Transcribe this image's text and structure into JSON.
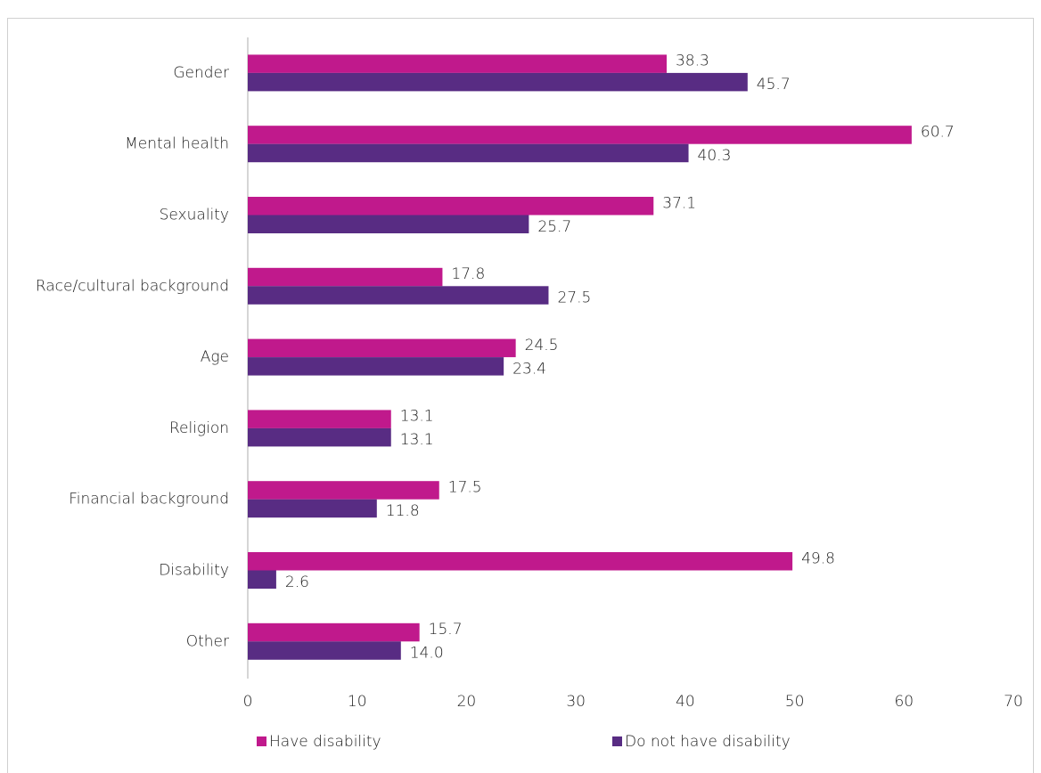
{
  "chart_data": {
    "type": "bar",
    "orientation": "horizontal",
    "categories": [
      "Gender",
      "Mental health",
      "Sexuality",
      "Race/cultural background",
      "Age",
      "Religion",
      "Financial background",
      "Disability",
      "Other"
    ],
    "series": [
      {
        "name": "Have disability",
        "color": "#c0198c",
        "values": [
          38.3,
          60.7,
          37.1,
          17.8,
          24.5,
          13.1,
          17.5,
          49.8,
          15.7
        ],
        "value_labels": [
          "38.3",
          "60.7",
          "37.1",
          "17.8",
          "24.5",
          "13.1",
          "17.5",
          "49.8",
          "15.7"
        ]
      },
      {
        "name": "Do not have disability",
        "color": "#582c83",
        "values": [
          45.7,
          40.3,
          25.7,
          27.5,
          23.4,
          13.1,
          11.8,
          2.6,
          14.0
        ],
        "value_labels": [
          "45.7",
          "40.3",
          "25.7",
          "27.5",
          "23.4",
          "13.1",
          "11.8",
          "2.6",
          "14.0"
        ]
      }
    ],
    "xlim": [
      0,
      70
    ],
    "xticks": [
      0,
      10,
      20,
      30,
      40,
      50,
      60,
      70
    ],
    "grid": false,
    "legend": "bottom"
  }
}
